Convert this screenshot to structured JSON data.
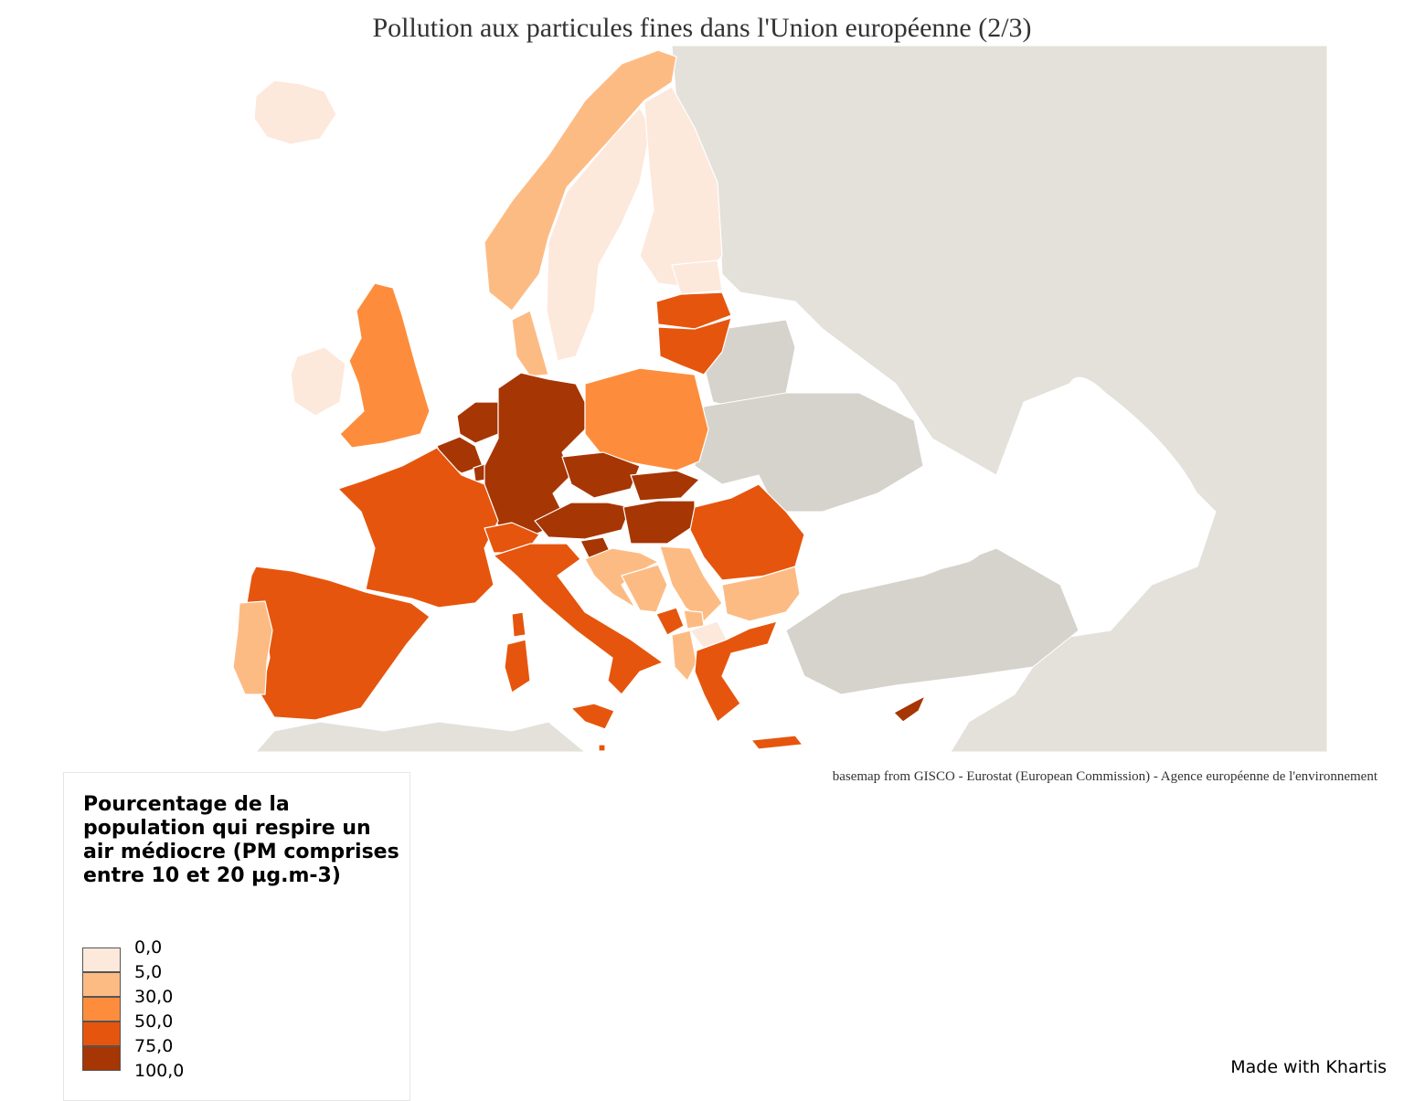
{
  "title": "Pollution aux particules fines dans l'Union européenne (2/3)",
  "credit": "basemap from GISCO - Eurostat (European Commission) - Agence européenne de l'environnement",
  "made_with": "Made with Khartis",
  "legend": {
    "title": "Pourcentage de la population qui respire un air médiocre (PM comprises entre 10 et 20 µg.m-3)",
    "breaks": [
      "0,0",
      "5,0",
      "30,0",
      "50,0",
      "75,0",
      "100,0"
    ],
    "classes": [
      {
        "color": "#fde8dc",
        "range": [
          0,
          5
        ]
      },
      {
        "color": "#fdbb84",
        "range": [
          5,
          30
        ]
      },
      {
        "color": "#fd8d3c",
        "range": [
          30,
          50
        ]
      },
      {
        "color": "#e6550d",
        "range": [
          50,
          75
        ]
      },
      {
        "color": "#a63603",
        "range": [
          75,
          100
        ]
      }
    ]
  },
  "colors": {
    "no_data_land": "#e3e1da",
    "neighbour_land": "#d6d3cc",
    "sea": "#ffffff",
    "border": "#ffffff"
  },
  "regions": [
    {
      "name": "Iceland",
      "class": 0
    },
    {
      "name": "Norway",
      "class": 1
    },
    {
      "name": "Sweden",
      "class": 0
    },
    {
      "name": "Finland",
      "class": 0
    },
    {
      "name": "Estonia",
      "class": 0
    },
    {
      "name": "Latvia",
      "class": 3
    },
    {
      "name": "Lithuania",
      "class": 3
    },
    {
      "name": "Denmark",
      "class": 1
    },
    {
      "name": "Ireland",
      "class": 0
    },
    {
      "name": "United Kingdom",
      "class": 2
    },
    {
      "name": "Netherlands",
      "class": 4
    },
    {
      "name": "Belgium",
      "class": 4
    },
    {
      "name": "Luxembourg",
      "class": 4
    },
    {
      "name": "Germany",
      "class": 4
    },
    {
      "name": "Poland",
      "class": 2
    },
    {
      "name": "Czechia",
      "class": 4
    },
    {
      "name": "Slovakia",
      "class": 4
    },
    {
      "name": "Austria",
      "class": 4
    },
    {
      "name": "Hungary",
      "class": 4
    },
    {
      "name": "Slovenia",
      "class": 4
    },
    {
      "name": "France",
      "class": 3
    },
    {
      "name": "Switzerland",
      "class": 3
    },
    {
      "name": "Italy",
      "class": 3
    },
    {
      "name": "Spain",
      "class": 3
    },
    {
      "name": "Portugal",
      "class": 1
    },
    {
      "name": "Croatia",
      "class": 1
    },
    {
      "name": "Bosnia and Herzegovina",
      "class": 1
    },
    {
      "name": "Serbia",
      "class": 1
    },
    {
      "name": "Montenegro",
      "class": 3
    },
    {
      "name": "Kosovo",
      "class": 1
    },
    {
      "name": "North Macedonia",
      "class": 0
    },
    {
      "name": "Albania",
      "class": 1
    },
    {
      "name": "Romania",
      "class": 3
    },
    {
      "name": "Bulgaria",
      "class": 1
    },
    {
      "name": "Greece",
      "class": 3
    },
    {
      "name": "Malta",
      "class": 3
    },
    {
      "name": "Cyprus",
      "class": 4
    }
  ]
}
